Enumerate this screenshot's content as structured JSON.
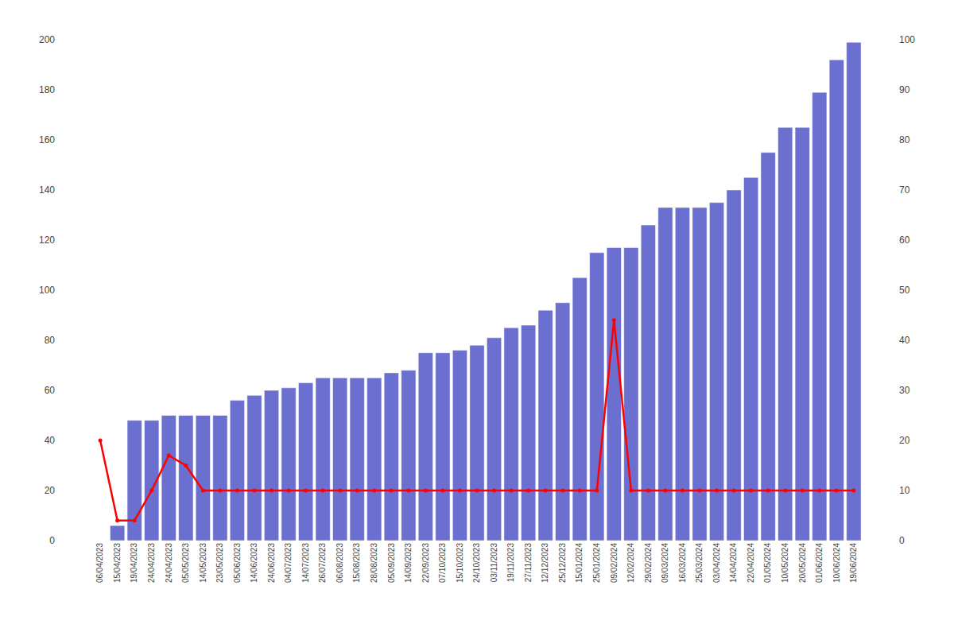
{
  "chart_data": {
    "type": "bar",
    "categories": [
      "06/04/2023",
      "15/04/2023",
      "19/04/2023",
      "24/04/2023",
      "24/04/2023",
      "05/05/2023",
      "14/05/2023",
      "23/05/2023",
      "05/06/2023",
      "14/06/2023",
      "24/06/2023",
      "04/07/2023",
      "14/07/2023",
      "26/07/2023",
      "06/08/2023",
      "15/08/2023",
      "28/08/2023",
      "05/09/2023",
      "14/09/2023",
      "22/09/2023",
      "07/10/2023",
      "15/10/2023",
      "24/10/2023",
      "03/11/2023",
      "19/11/2023",
      "27/11/2023",
      "12/12/2023",
      "25/12/2023",
      "15/01/2024",
      "25/01/2024",
      "09/02/2024",
      "12/02/2024",
      "29/02/2024",
      "09/03/2024",
      "16/03/2024",
      "25/03/2024",
      "03/04/2024",
      "14/04/2024",
      "22/04/2024",
      "01/05/2024",
      "10/05/2024",
      "20/05/2024",
      "01/06/2024",
      "10/06/2024",
      "19/06/2024"
    ],
    "series": [
      {
        "type": "bar",
        "color": "#6b6fcf",
        "values": [
          0,
          6,
          48,
          48,
          50,
          50,
          50,
          50,
          56,
          58,
          60,
          61,
          63,
          65,
          65,
          65,
          65,
          67,
          68,
          75,
          75,
          76,
          78,
          81,
          85,
          86,
          92,
          95,
          105,
          115,
          117,
          117,
          126,
          133,
          133,
          133,
          135,
          140,
          145,
          155,
          165,
          165,
          179,
          192,
          199
        ]
      },
      {
        "type": "line",
        "color": "#ff0000",
        "marker": "circle",
        "axis": "y2",
        "values": [
          20,
          4,
          4,
          10,
          17,
          15,
          10,
          10,
          10,
          10,
          10,
          10,
          10,
          10,
          10,
          10,
          10,
          10,
          10,
          10,
          10,
          10,
          10,
          10,
          10,
          10,
          10,
          10,
          10,
          10,
          44,
          10,
          10,
          10,
          10,
          10,
          10,
          10,
          10,
          10,
          10,
          10,
          10,
          10,
          10
        ]
      }
    ],
    "ylim": [
      0,
      200
    ],
    "yticks": [
      0,
      20,
      40,
      60,
      80,
      100,
      120,
      140,
      160,
      180,
      200
    ],
    "y2lim": [
      0,
      100
    ],
    "y2ticks": [
      0,
      10,
      20,
      30,
      40,
      50,
      60,
      70,
      80,
      90,
      100
    ],
    "grid": false
  }
}
